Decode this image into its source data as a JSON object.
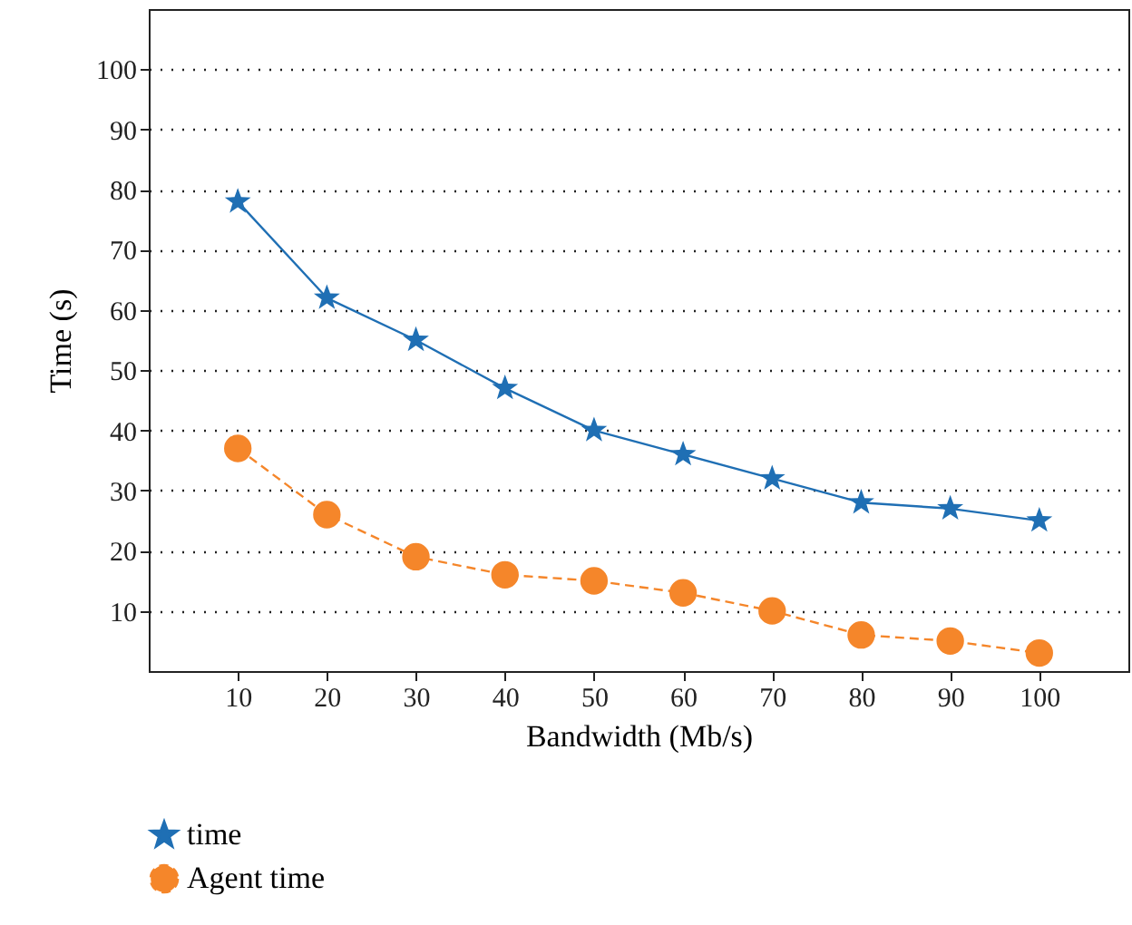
{
  "chart_data": {
    "type": "line",
    "xlabel": "Bandwidth (Mb/s)",
    "ylabel": "Time (s)",
    "x": [
      10,
      20,
      30,
      40,
      50,
      60,
      70,
      80,
      90,
      100
    ],
    "series": [
      {
        "name": "time",
        "color": "#1f6fb4",
        "marker": "star",
        "line_style": "solid",
        "values": [
          78,
          62,
          55,
          47,
          40,
          36,
          32,
          28,
          27,
          25
        ]
      },
      {
        "name": "Agent time",
        "color": "#f5862a",
        "marker": "circle",
        "line_style": "dashed",
        "values": [
          37,
          26,
          19,
          16,
          15,
          13,
          10,
          6,
          5,
          3
        ]
      }
    ],
    "xlim": [
      0,
      110
    ],
    "xticks": [
      10,
      20,
      30,
      40,
      50,
      60,
      70,
      80,
      90,
      100
    ],
    "ylim": [
      0,
      110
    ],
    "yticks": [
      10,
      20,
      30,
      40,
      50,
      60,
      70,
      80,
      90,
      100
    ],
    "grid": "y",
    "legend": "bottom left"
  }
}
